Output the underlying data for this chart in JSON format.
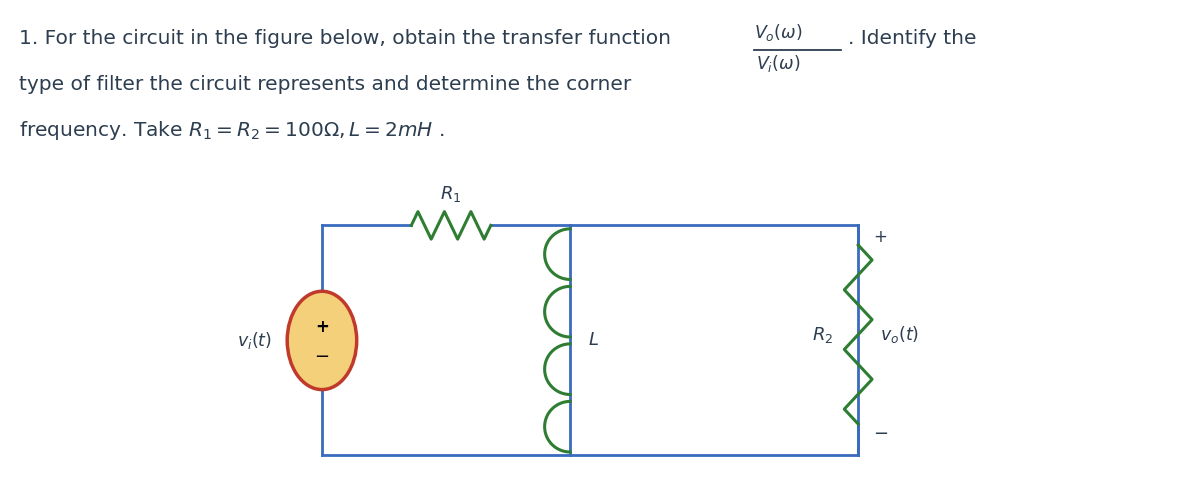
{
  "bg_color": "#ffffff",
  "text_color": "#2d3e50",
  "circuit_color": "#3a6bbf",
  "component_color": "#2e7d32",
  "source_fill": "#f5d07a",
  "source_stroke": "#c0392b",
  "fig_width": 12.0,
  "fig_height": 4.97,
  "dpi": 100,
  "line1": "1. For the circuit in the figure below, obtain the transfer function",
  "frac_top": "$V_o(\\omega)$",
  "frac_bot": "$V_i(\\omega)$",
  "identify": ". Identify the",
  "line2": "type of filter the circuit represents and determine the corner",
  "line3": "frequency. Take $R_1 = R_2 = 100\\Omega, L = 2mH$ .",
  "label_R1": "$R_1$",
  "label_L": "$L$",
  "label_R2": "$R_2$",
  "label_vi": "$v_i(t)$",
  "label_vo": "$v_o(t)$",
  "plus": "+",
  "minus": "−"
}
